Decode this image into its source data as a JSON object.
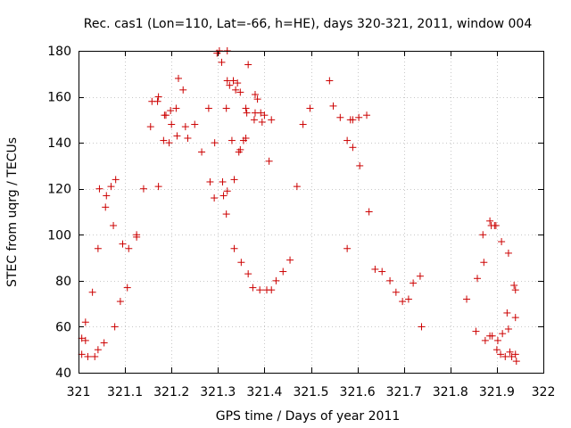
{
  "chart_data": {
    "type": "scatter",
    "title": "Rec. cas1 (Lon=110, Lat=-66, h=HE), days 320-321, 2011, window 004",
    "xlabel": "GPS time / Days of year 2011",
    "ylabel": "STEC from uqrg / TECUs",
    "xlim": [
      321,
      322
    ],
    "ylim": [
      40,
      180
    ],
    "xticks": [
      321,
      321.1,
      321.2,
      321.3,
      321.4,
      321.5,
      321.6,
      321.7,
      321.8,
      321.9,
      322
    ],
    "xtick_labels": [
      "321",
      "321.1",
      "321.2",
      "321.3",
      "321.4",
      "321.5",
      "321.6",
      "321.7",
      "321.8",
      "321.9",
      "322"
    ],
    "yticks": [
      40,
      60,
      80,
      100,
      120,
      140,
      160,
      180
    ],
    "ytick_labels": [
      "40",
      "60",
      "80",
      "100",
      "120",
      "140",
      "160",
      "180"
    ],
    "grid": true,
    "marker": "+",
    "color": "#cc0000",
    "points": [
      [
        321.007,
        48
      ],
      [
        321.007,
        55
      ],
      [
        321.015,
        62
      ],
      [
        321.015,
        54
      ],
      [
        321.02,
        47
      ],
      [
        321.03,
        75
      ],
      [
        321.035,
        47
      ],
      [
        321.042,
        94
      ],
      [
        321.042,
        50
      ],
      [
        321.045,
        120
      ],
      [
        321.055,
        53
      ],
      [
        321.058,
        112
      ],
      [
        321.06,
        117
      ],
      [
        321.07,
        121
      ],
      [
        321.075,
        104
      ],
      [
        321.078,
        60
      ],
      [
        321.08,
        124
      ],
      [
        321.09,
        71
      ],
      [
        321.095,
        96
      ],
      [
        321.105,
        77
      ],
      [
        321.108,
        94
      ],
      [
        321.125,
        99
      ],
      [
        321.125,
        100
      ],
      [
        321.14,
        120
      ],
      [
        321.155,
        147
      ],
      [
        321.158,
        158
      ],
      [
        321.17,
        158
      ],
      [
        321.172,
        160
      ],
      [
        321.172,
        121
      ],
      [
        321.183,
        141
      ],
      [
        321.185,
        152
      ],
      [
        321.188,
        152
      ],
      [
        321.195,
        140
      ],
      [
        321.198,
        154
      ],
      [
        321.2,
        148
      ],
      [
        321.21,
        155
      ],
      [
        321.212,
        143
      ],
      [
        321.215,
        168
      ],
      [
        321.225,
        163
      ],
      [
        321.23,
        147
      ],
      [
        321.235,
        142
      ],
      [
        321.25,
        148
      ],
      [
        321.265,
        136
      ],
      [
        321.28,
        155
      ],
      [
        321.283,
        123
      ],
      [
        321.292,
        116
      ],
      [
        321.293,
        140
      ],
      [
        321.298,
        179
      ],
      [
        321.303,
        180
      ],
      [
        321.308,
        175
      ],
      [
        321.31,
        123
      ],
      [
        321.312,
        117
      ],
      [
        321.318,
        109
      ],
      [
        321.32,
        119
      ],
      [
        321.318,
        155
      ],
      [
        321.32,
        167
      ],
      [
        321.32,
        180
      ],
      [
        321.325,
        165
      ],
      [
        321.33,
        141
      ],
      [
        321.333,
        167
      ],
      [
        321.335,
        94
      ],
      [
        321.335,
        124
      ],
      [
        321.338,
        163
      ],
      [
        321.342,
        166
      ],
      [
        321.345,
        136
      ],
      [
        321.348,
        162
      ],
      [
        321.348,
        137
      ],
      [
        321.35,
        88
      ],
      [
        321.355,
        141
      ],
      [
        321.36,
        142
      ],
      [
        321.36,
        155
      ],
      [
        321.362,
        153
      ],
      [
        321.365,
        174
      ],
      [
        321.365,
        83
      ],
      [
        321.375,
        77
      ],
      [
        321.378,
        150
      ],
      [
        321.38,
        153
      ],
      [
        321.38,
        161
      ],
      [
        321.385,
        159
      ],
      [
        321.39,
        76
      ],
      [
        321.392,
        153
      ],
      [
        321.395,
        149
      ],
      [
        321.4,
        152
      ],
      [
        321.405,
        76
      ],
      [
        321.41,
        132
      ],
      [
        321.415,
        76
      ],
      [
        321.415,
        150
      ],
      [
        321.425,
        80
      ],
      [
        321.44,
        84
      ],
      [
        321.455,
        89
      ],
      [
        321.47,
        121
      ],
      [
        321.483,
        148
      ],
      [
        321.498,
        155
      ],
      [
        321.54,
        167
      ],
      [
        321.548,
        156
      ],
      [
        321.563,
        151
      ],
      [
        321.578,
        141
      ],
      [
        321.578,
        94
      ],
      [
        321.585,
        150
      ],
      [
        321.59,
        150
      ],
      [
        321.59,
        138
      ],
      [
        321.603,
        151
      ],
      [
        321.605,
        130
      ],
      [
        321.62,
        152
      ],
      [
        321.625,
        110
      ],
      [
        321.638,
        85
      ],
      [
        321.653,
        84
      ],
      [
        321.67,
        80
      ],
      [
        321.683,
        75
      ],
      [
        321.697,
        71
      ],
      [
        321.71,
        72
      ],
      [
        321.72,
        79
      ],
      [
        321.735,
        82
      ],
      [
        321.738,
        60
      ],
      [
        321.835,
        72
      ],
      [
        321.855,
        58
      ],
      [
        321.858,
        81
      ],
      [
        321.87,
        100
      ],
      [
        321.872,
        88
      ],
      [
        321.875,
        54
      ],
      [
        321.885,
        56
      ],
      [
        321.885,
        106
      ],
      [
        321.888,
        104
      ],
      [
        321.89,
        56
      ],
      [
        321.895,
        104
      ],
      [
        321.898,
        104
      ],
      [
        321.9,
        50
      ],
      [
        321.902,
        54
      ],
      [
        321.908,
        48
      ],
      [
        321.91,
        97
      ],
      [
        321.912,
        57
      ],
      [
        321.918,
        47
      ],
      [
        321.922,
        66
      ],
      [
        321.925,
        92
      ],
      [
        321.925,
        59
      ],
      [
        321.928,
        49
      ],
      [
        321.932,
        47
      ],
      [
        321.937,
        78
      ],
      [
        321.94,
        76
      ],
      [
        321.94,
        64
      ],
      [
        321.94,
        48
      ],
      [
        321.942,
        45
      ]
    ]
  }
}
